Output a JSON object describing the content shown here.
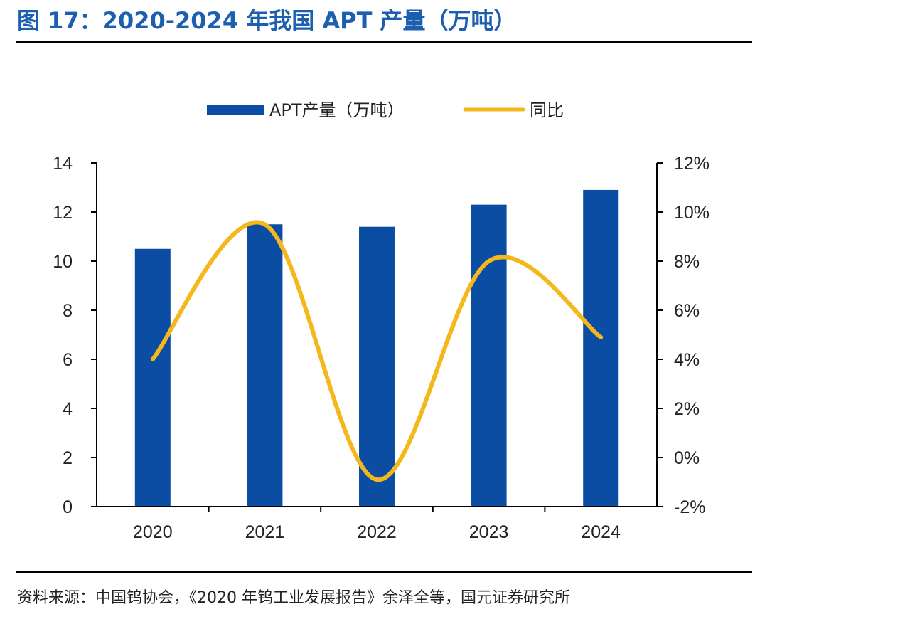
{
  "figure": {
    "title": "图 17：2020-2024 年我国 APT 产量（万吨）",
    "source": "资料来源：中国钨协会，《2020 年钨工业发展报告》余泽全等，国元证券研究所"
  },
  "colors": {
    "title": "#1c5fb0",
    "bar": "#0b4da2",
    "line": "#f5b81c",
    "axis": "#000000",
    "text": "#222222"
  },
  "chart_data": {
    "type": "bar",
    "categories": [
      "2020",
      "2021",
      "2022",
      "2023",
      "2024"
    ],
    "series": [
      {
        "name": "APT产量（万吨）",
        "type": "bar",
        "axis": "left",
        "values": [
          10.5,
          11.5,
          11.4,
          12.3,
          12.9
        ]
      },
      {
        "name": "同比",
        "type": "line",
        "axis": "right",
        "smooth": true,
        "values": [
          4.0,
          9.5,
          -0.9,
          8.0,
          4.9
        ]
      }
    ],
    "y_left": {
      "ylim": [
        0,
        14
      ],
      "ticks": [
        0,
        2,
        4,
        6,
        8,
        10,
        12,
        14
      ],
      "tick_labels": [
        "0",
        "2",
        "4",
        "6",
        "8",
        "10",
        "12",
        "14"
      ]
    },
    "y_right": {
      "ylim": [
        -2,
        12
      ],
      "ticks": [
        -2,
        0,
        2,
        4,
        6,
        8,
        10,
        12
      ],
      "tick_labels": [
        "-2%",
        "0%",
        "2%",
        "4%",
        "6%",
        "8%",
        "10%",
        "12%"
      ]
    },
    "grid": false,
    "legend_position": "top-center"
  }
}
